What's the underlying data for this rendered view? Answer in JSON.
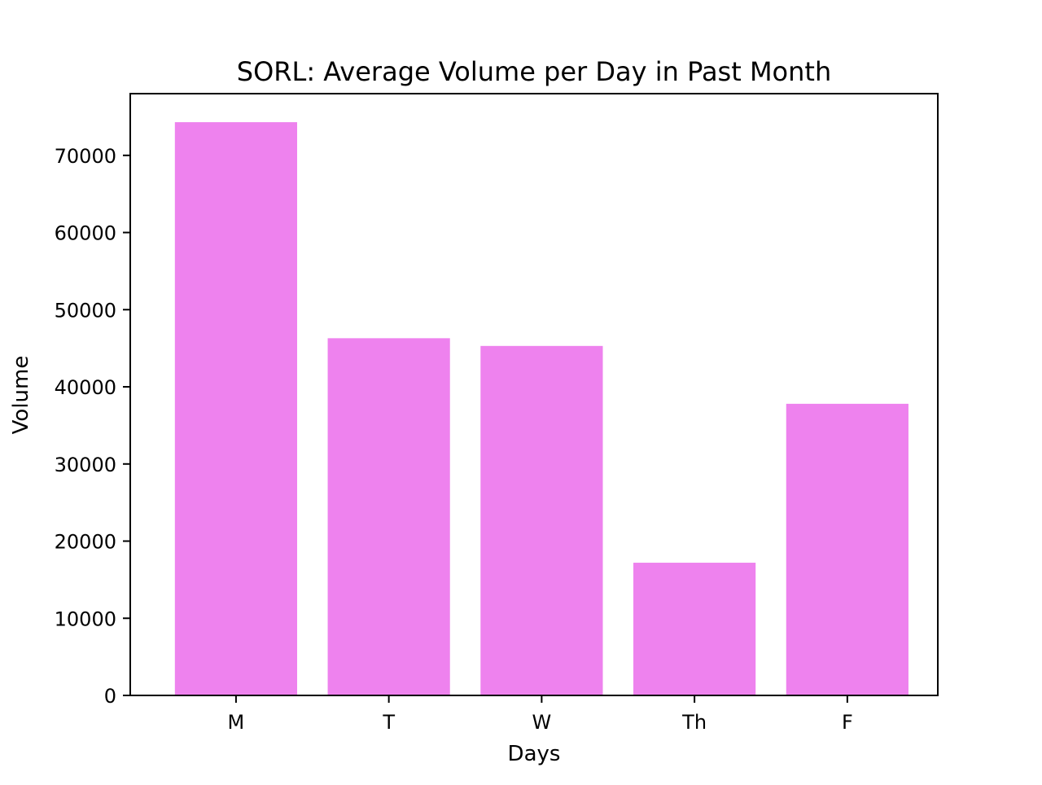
{
  "chart_data": {
    "type": "bar",
    "title": "SORL: Average Volume per Day in Past Month",
    "xlabel": "Days",
    "ylabel": "Volume",
    "categories": [
      "M",
      "T",
      "W",
      "Th",
      "F"
    ],
    "values": [
      74300,
      46300,
      45300,
      17200,
      37800
    ],
    "ylim": [
      0,
      78000
    ],
    "yticks": [
      0,
      10000,
      20000,
      30000,
      40000,
      50000,
      60000,
      70000
    ],
    "ytick_labels": [
      "0",
      "10000",
      "20000",
      "30000",
      "40000",
      "50000",
      "60000",
      "70000"
    ],
    "grid": false,
    "bar_color": "#ee82ee"
  }
}
